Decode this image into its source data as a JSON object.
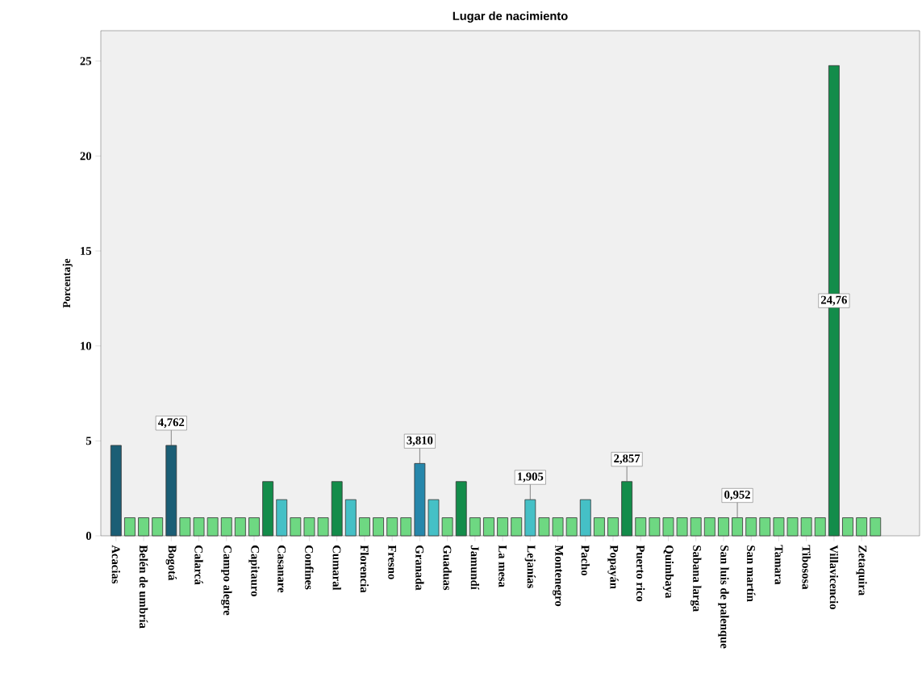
{
  "chart_data": {
    "type": "bar",
    "title": "Lugar de nacimiento",
    "ylabel": "Porcentaje",
    "categories": [
      "Acacias",
      null,
      "Belén de umbría",
      null,
      "Bogotá",
      null,
      "Calarcá",
      null,
      "Campo alegre",
      null,
      "Capitauro",
      null,
      "Casanare",
      null,
      "Confines",
      null,
      "Cumaral",
      null,
      "Florencia",
      null,
      "Fresno",
      null,
      "Granada",
      null,
      "Guaduas",
      null,
      "Jamundí",
      null,
      "La mesa",
      null,
      "Lejanías",
      null,
      "Montenegro",
      null,
      "Pacho",
      null,
      "Popayán",
      null,
      "Puerto rico",
      null,
      "Quimbaya",
      null,
      "Sabana larga",
      null,
      "San luis de palenque",
      null,
      "San martín",
      null,
      "Tamara",
      null,
      "Tibososa",
      null,
      "Villavicencio",
      null,
      "Zetaquira",
      null
    ],
    "values": [
      4.762,
      0.952,
      0.952,
      0.952,
      4.762,
      0.952,
      0.952,
      0.952,
      0.952,
      0.952,
      0.952,
      2.857,
      1.905,
      0.952,
      0.952,
      0.952,
      2.857,
      1.905,
      0.952,
      0.952,
      0.952,
      0.952,
      3.81,
      1.905,
      0.952,
      2.857,
      0.952,
      0.952,
      0.952,
      0.952,
      1.905,
      0.952,
      0.952,
      0.952,
      1.905,
      0.952,
      0.952,
      2.857,
      0.952,
      0.952,
      0.952,
      0.952,
      0.952,
      0.952,
      0.952,
      0.952,
      0.952,
      0.952,
      0.952,
      0.952,
      0.952,
      0.952,
      24.76,
      0.952,
      0.952,
      0.952
    ],
    "colors": [
      "#1b5e75",
      "#6ed882",
      "#6ed882",
      "#6ed882",
      "#1b5e75",
      "#6ed882",
      "#6ed882",
      "#6ed882",
      "#6ed882",
      "#6ed882",
      "#6ed882",
      "#138c4a",
      "#45c0c6",
      "#6ed882",
      "#6ed882",
      "#6ed882",
      "#138c4a",
      "#45c0c6",
      "#6ed882",
      "#6ed882",
      "#6ed882",
      "#6ed882",
      "#2687ab",
      "#45c0c6",
      "#6ed882",
      "#138c4a",
      "#6ed882",
      "#6ed882",
      "#6ed882",
      "#6ed882",
      "#45c0c6",
      "#6ed882",
      "#6ed882",
      "#6ed882",
      "#45c0c6",
      "#6ed882",
      "#6ed882",
      "#138c4a",
      "#6ed882",
      "#6ed882",
      "#6ed882",
      "#6ed882",
      "#6ed882",
      "#6ed882",
      "#6ed882",
      "#6ed882",
      "#6ed882",
      "#6ed882",
      "#6ed882",
      "#6ed882",
      "#6ed882",
      "#6ed882",
      "#138c4a",
      "#6ed882",
      "#6ed882",
      "#6ed882"
    ],
    "value_labels": [
      null,
      null,
      null,
      null,
      "4,762",
      null,
      null,
      null,
      null,
      null,
      null,
      null,
      null,
      null,
      null,
      null,
      null,
      null,
      null,
      null,
      null,
      null,
      "3,810",
      null,
      null,
      null,
      null,
      null,
      null,
      null,
      "1,905",
      null,
      null,
      null,
      null,
      null,
      null,
      "2,857",
      null,
      null,
      null,
      null,
      null,
      null,
      null,
      "0,952",
      null,
      null,
      null,
      null,
      null,
      null,
      "24,76",
      null,
      null,
      null
    ],
    "ylim": [
      0,
      26.6
    ],
    "yticks": [
      0,
      5,
      10,
      15,
      20,
      25
    ]
  }
}
